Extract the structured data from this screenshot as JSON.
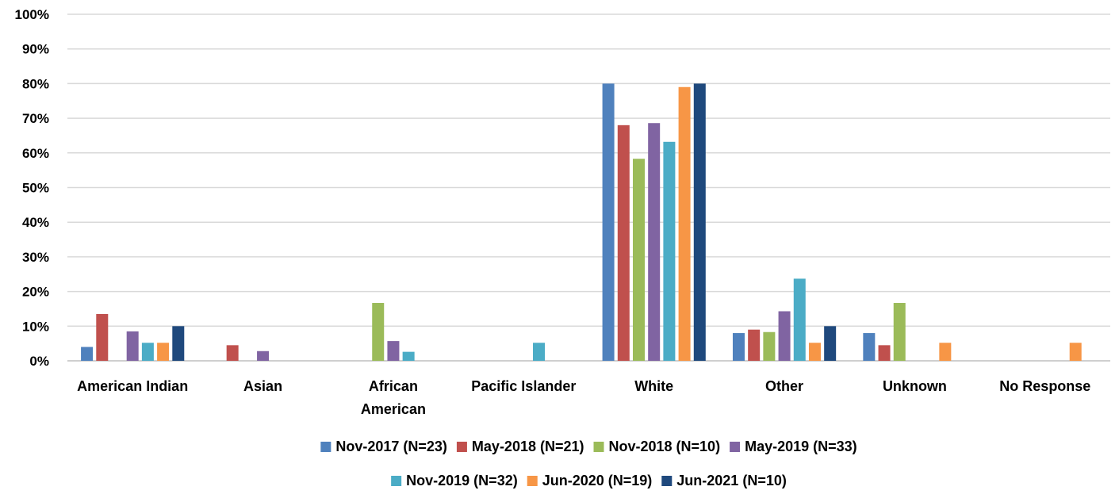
{
  "chart_data": {
    "type": "bar",
    "title": "",
    "xlabel": "",
    "ylabel": "",
    "ylim": [
      0,
      100
    ],
    "y_unit": "%",
    "y_ticks": [
      0,
      10,
      20,
      30,
      40,
      50,
      60,
      70,
      80,
      90,
      100
    ],
    "y_tick_labels": [
      "0%",
      "10%",
      "20%",
      "30%",
      "40%",
      "50%",
      "60%",
      "70%",
      "80%",
      "90%",
      "100%"
    ],
    "grid": "horizontal",
    "legend_position": "bottom",
    "categories": [
      "American Indian",
      "Asian",
      "African American",
      "Pacific Islander",
      "White",
      "Other",
      "Unknown",
      "No Response"
    ],
    "category_lines": [
      [
        "American Indian"
      ],
      [
        "Asian"
      ],
      [
        "African",
        "American"
      ],
      [
        "Pacific Islander"
      ],
      [
        "White"
      ],
      [
        "Other"
      ],
      [
        "Unknown"
      ],
      [
        "No Response"
      ]
    ],
    "series": [
      {
        "name": "Nov-2017 (N=23)",
        "color": "#4F81BD",
        "values": [
          4,
          0,
          0,
          0,
          80,
          8,
          8,
          0
        ]
      },
      {
        "name": "May-2018 (N=21)",
        "color": "#C0504D",
        "values": [
          13.5,
          4.5,
          0,
          0,
          68,
          9,
          4.5,
          0
        ]
      },
      {
        "name": "Nov-2018 (N=10)",
        "color": "#9BBB59",
        "values": [
          0,
          0,
          16.7,
          0,
          58.3,
          8.3,
          16.7,
          0
        ]
      },
      {
        "name": "May-2019 (N=33)",
        "color": "#8064A2",
        "values": [
          8.5,
          2.8,
          5.7,
          0,
          68.6,
          14.3,
          0,
          0
        ]
      },
      {
        "name": "Nov-2019 (N=32)",
        "color": "#4BACC6",
        "values": [
          5.2,
          0,
          2.6,
          5.2,
          63.2,
          23.7,
          0,
          0
        ]
      },
      {
        "name": "Jun-2020 (N=19)",
        "color": "#F79646",
        "values": [
          5.2,
          0,
          0,
          0,
          79,
          5.2,
          5.2,
          5.2
        ]
      },
      {
        "name": "Jun-2021 (N=10)",
        "color": "#1F497D",
        "values": [
          10,
          0,
          0,
          0,
          80,
          10,
          0,
          0
        ]
      }
    ]
  }
}
